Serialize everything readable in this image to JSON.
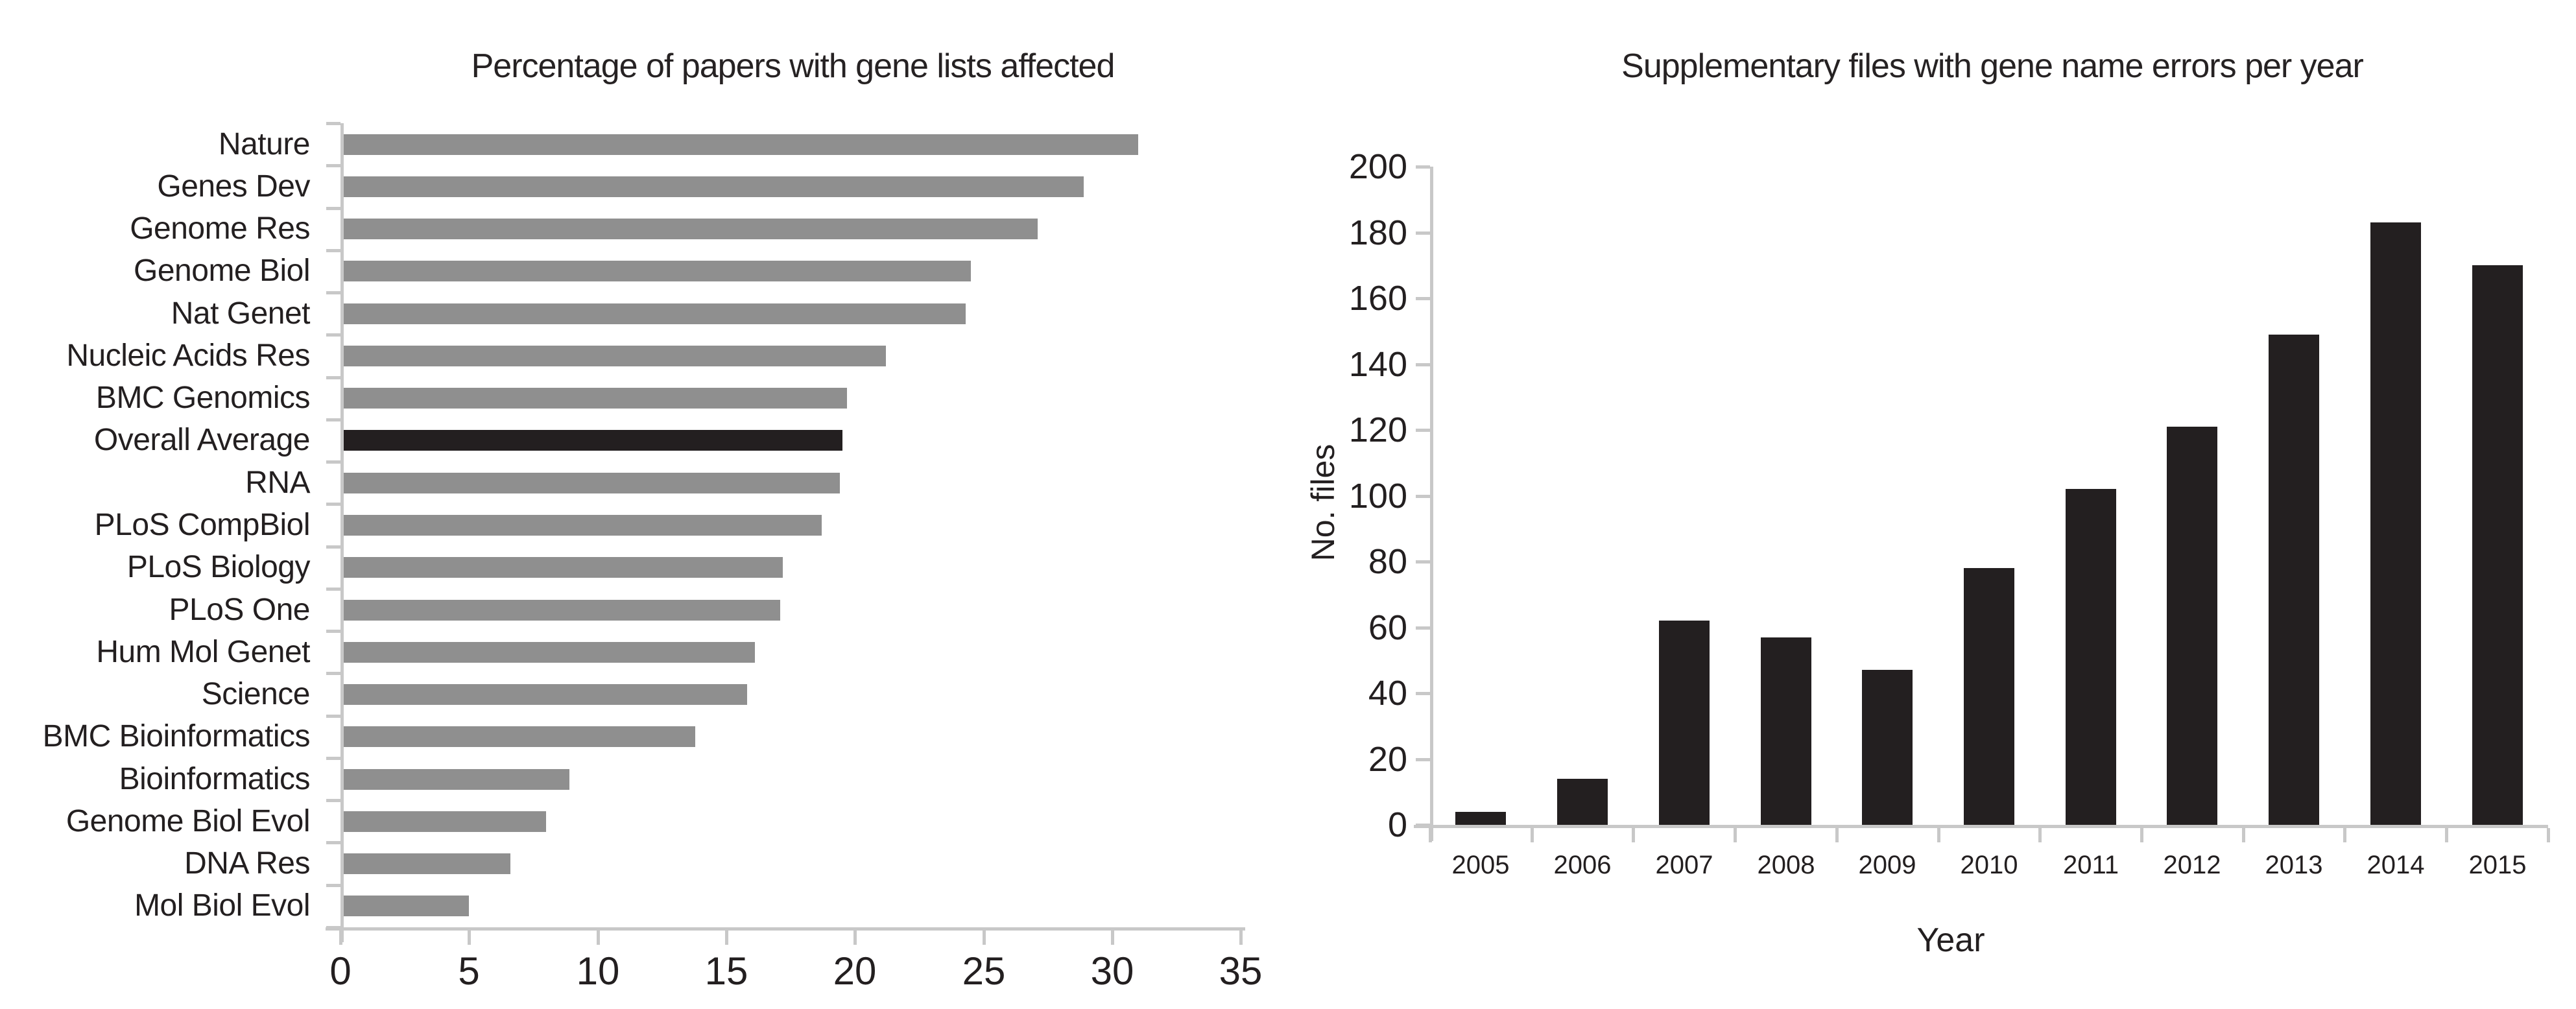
{
  "figure": {
    "background": "#ffffff",
    "text_color": "#231f20",
    "axis_color": "#c8c8c8"
  },
  "chart_data": [
    {
      "type": "bar",
      "orientation": "horizontal",
      "title": "Percentage of papers with gene lists affected",
      "categories": [
        "Nature",
        "Genes Dev",
        "Genome Res",
        "Genome Biol",
        "Nat Genet",
        "Nucleic Acids Res",
        "BMC Genomics",
        "Overall Average",
        "RNA",
        "PLoS CompBiol",
        "PLoS Biology",
        "PLoS One",
        "Hum Mol Genet",
        "Science",
        "BMC Bioinformatics",
        "Bioinformatics",
        "Genome Biol Evol",
        "DNA Res",
        "Mol Biol Evol"
      ],
      "values": [
        31.0,
        28.9,
        27.1,
        24.5,
        24.3,
        21.2,
        19.7,
        19.5,
        19.4,
        18.7,
        17.2,
        17.1,
        16.1,
        15.8,
        13.8,
        8.9,
        8.0,
        6.6,
        5.0
      ],
      "highlight_category": "Overall Average",
      "bar_color": "#8f8f8f",
      "highlight_color": "#231f20",
      "x_ticks": [
        0,
        5,
        10,
        15,
        20,
        25,
        30,
        35
      ],
      "xlim": [
        0,
        35
      ],
      "xlabel": "",
      "ylabel": "",
      "grid": false,
      "legend": false
    },
    {
      "type": "bar",
      "orientation": "vertical",
      "title": "Supplementary files with gene name errors per year",
      "categories": [
        "2005",
        "2006",
        "2007",
        "2008",
        "2009",
        "2010",
        "2011",
        "2012",
        "2013",
        "2014",
        "2015"
      ],
      "values": [
        4,
        14,
        62,
        57,
        47,
        78,
        102,
        121,
        149,
        183,
        170
      ],
      "bar_color": "#231f20",
      "y_ticks": [
        0,
        20,
        40,
        60,
        80,
        100,
        120,
        140,
        160,
        180,
        200
      ],
      "ylim": [
        0,
        200
      ],
      "xlabel": "Year",
      "ylabel": "No. files",
      "grid": false,
      "legend": false
    }
  ]
}
